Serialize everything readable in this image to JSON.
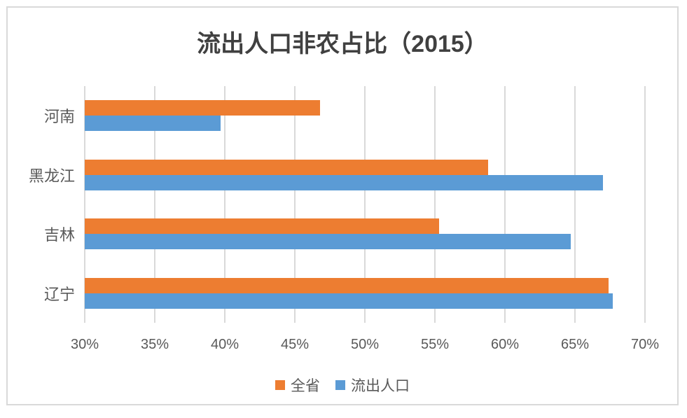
{
  "chart_data": {
    "type": "bar",
    "orientation": "horizontal",
    "title": "流出人口非农占比（2015）",
    "categories": [
      "河南",
      "黑龙江",
      "吉林",
      "辽宁"
    ],
    "series": [
      {
        "name": "全省",
        "color": "#ED7D31",
        "values": [
          46.8,
          58.8,
          55.3,
          67.4
        ]
      },
      {
        "name": "流出人口",
        "color": "#5B9BD5",
        "values": [
          39.7,
          67.0,
          64.7,
          67.7
        ]
      }
    ],
    "x_axis": {
      "min": 30,
      "max": 70,
      "step": 5,
      "unit": "%",
      "tick_labels": [
        "30%",
        "35%",
        "40%",
        "45%",
        "50%",
        "55%",
        "60%",
        "65%",
        "70%"
      ]
    },
    "grid": true,
    "gridline_color": "#D9D9D9",
    "text_color": "#595959",
    "title_color": "#404040",
    "legend_position": "bottom"
  }
}
